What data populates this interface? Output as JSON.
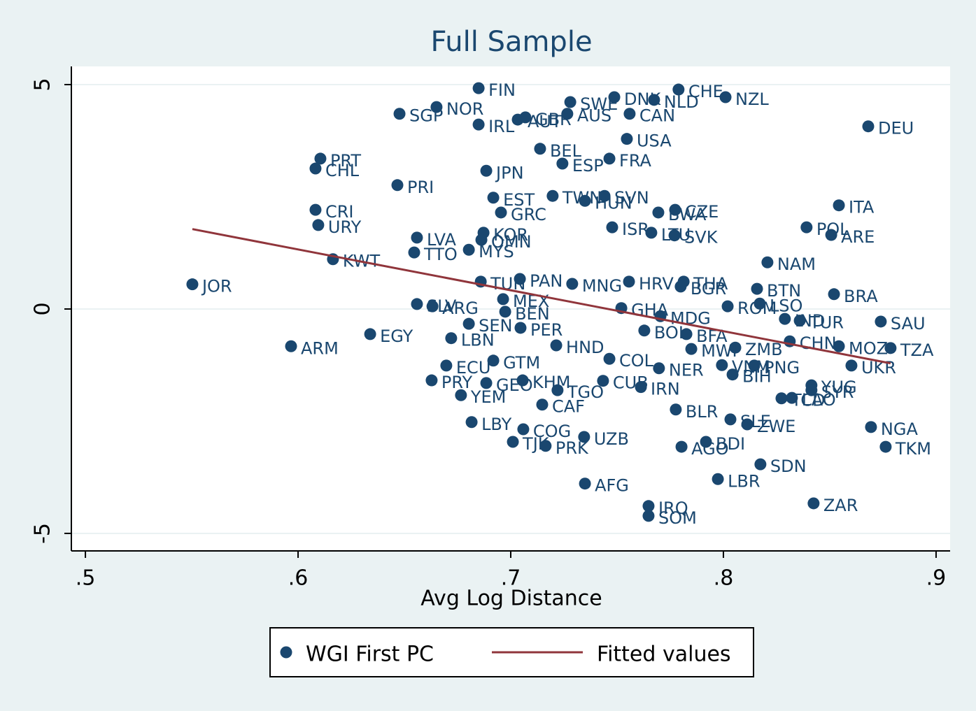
{
  "chart_data": {
    "type": "scatter",
    "title": "Full Sample",
    "x_label": "Avg Log Distance",
    "xlim": [
      0.4934,
      0.9066
    ],
    "ylim": [
      -5.39,
      5.405
    ],
    "xticks": [
      {
        "value": 0.5,
        "label": ".5"
      },
      {
        "value": 0.6,
        "label": ".6"
      },
      {
        "value": 0.7,
        "label": ".7"
      },
      {
        "value": 0.8,
        "label": ".8"
      },
      {
        "value": 0.9,
        "label": ".9"
      }
    ],
    "yticks": [
      -5,
      0,
      5
    ],
    "grid": true,
    "series": [
      {
        "name": "WGI First PC",
        "style": "marker",
        "color": "#1a476f",
        "point_labels": [
          "FIN",
          "NOR",
          "SGP",
          "IRL",
          "AUT",
          "GBR",
          "AUS",
          "SWE",
          "DNK",
          "NLD",
          "CHE",
          "NZL",
          "CAN",
          "USA",
          "DEU",
          "BEL",
          "ESP",
          "FRA",
          "PRT",
          "CHL",
          "JPN",
          "PRI",
          "EST",
          "TWN",
          "SVN",
          "HUN",
          "CRI",
          "GRC",
          "BWA",
          "CZE",
          "URY",
          "ISR",
          "LTU",
          "SVK",
          "KOR",
          "OMN",
          "LVA",
          "MYS",
          "TTO",
          "KWT",
          "POL",
          "ITA",
          "ARE",
          "NAM",
          "JOR",
          "PAN",
          "TUN",
          "MNG",
          "HRV",
          "THA",
          "BGR",
          "BTN",
          "BRA",
          "ROM",
          "LSO",
          "IND",
          "TUR",
          "SAU",
          "CHN",
          "MOZ",
          "TZA",
          "UKR",
          "ZMB",
          "SLV",
          "ARG",
          "MEX",
          "BEN",
          "SEN",
          "PER",
          "EGY",
          "ARM",
          "LBN",
          "HND",
          "GHA",
          "MDG",
          "BOL",
          "BFA",
          "COL",
          "GTM",
          "ECU",
          "PRY",
          "GEO",
          "KHM",
          "YEM",
          "TGO",
          "CAF",
          "CUB",
          "IRN",
          "NER",
          "BLR",
          "LBR",
          "SDN",
          "ZAR",
          "SOM",
          "IRQ",
          "AFG",
          "AGO",
          "BDI",
          "ZWE",
          "SLE",
          "NGA",
          "TKM",
          "YUG",
          "SYR",
          "LAO",
          "TCD",
          "PNG",
          "BIH",
          "LBY",
          "COG",
          "TJK",
          "PRK",
          "UZB",
          "MWI",
          "VNM"
        ],
        "x": [
          0.6849,
          0.6651,
          0.6477,
          0.6849,
          0.7033,
          0.7069,
          0.7266,
          0.728,
          0.7487,
          0.7674,
          0.7789,
          0.801,
          0.7559,
          0.7546,
          0.8681,
          0.7138,
          0.7243,
          0.7464,
          0.6105,
          0.6082,
          0.6885,
          0.6467,
          0.6918,
          0.7197,
          0.7441,
          0.7349,
          0.6082,
          0.6954,
          0.7694,
          0.7773,
          0.6095,
          0.7477,
          0.7661,
          0.777,
          0.6872,
          0.6862,
          0.6559,
          0.6803,
          0.6546,
          0.6164,
          0.8391,
          0.8543,
          0.8507,
          0.8207,
          0.5503,
          0.7043,
          0.6859,
          0.7289,
          0.7556,
          0.7813,
          0.7799,
          0.8158,
          0.852,
          0.802,
          0.8171,
          0.8289,
          0.8359,
          0.874,
          0.8312,
          0.8543,
          0.8786,
          0.8602,
          0.8056,
          0.6559,
          0.6632,
          0.6964,
          0.6974,
          0.6803,
          0.7046,
          0.6339,
          0.5967,
          0.672,
          0.7214,
          0.752,
          0.7704,
          0.7628,
          0.7826,
          0.7464,
          0.6918,
          0.6697,
          0.6628,
          0.6885,
          0.7056,
          0.6766,
          0.722,
          0.7148,
          0.7434,
          0.7612,
          0.7697,
          0.7776,
          0.7974,
          0.8174,
          0.8424,
          0.7648,
          0.7648,
          0.7349,
          0.7803,
          0.7918,
          0.8112,
          0.8033,
          0.8694,
          0.8763,
          0.8414,
          0.8414,
          0.8322,
          0.8273,
          0.8145,
          0.8043,
          0.6816,
          0.7059,
          0.701,
          0.7164,
          0.7345,
          0.7849,
          0.7993
        ],
        "values": [
          4.92,
          4.5,
          4.35,
          4.11,
          4.22,
          4.27,
          4.35,
          4.61,
          4.72,
          4.66,
          4.89,
          4.72,
          4.35,
          3.79,
          4.07,
          3.57,
          3.24,
          3.35,
          3.35,
          3.13,
          3.08,
          2.76,
          2.48,
          2.52,
          2.52,
          2.41,
          2.21,
          2.15,
          2.15,
          2.21,
          1.87,
          1.82,
          1.7,
          1.64,
          1.7,
          1.54,
          1.59,
          1.32,
          1.26,
          1.11,
          1.82,
          2.31,
          1.65,
          1.04,
          0.55,
          0.67,
          0.61,
          0.56,
          0.61,
          0.61,
          0.5,
          0.45,
          0.33,
          0.06,
          0.12,
          -0.22,
          -0.26,
          -0.28,
          -0.72,
          -0.83,
          -0.87,
          -1.26,
          -0.86,
          0.11,
          0.06,
          0.22,
          -0.06,
          -0.33,
          -0.42,
          -0.56,
          -0.83,
          -0.65,
          -0.81,
          0.02,
          -0.16,
          -0.48,
          -0.56,
          -1.11,
          -1.15,
          -1.26,
          -1.59,
          -1.65,
          -1.59,
          -1.92,
          -1.81,
          -2.13,
          -1.6,
          -1.74,
          -1.32,
          -2.24,
          -3.79,
          -3.46,
          -4.33,
          -4.61,
          -4.39,
          -3.89,
          -3.07,
          -2.96,
          -2.57,
          -2.46,
          -2.63,
          -3.07,
          -1.7,
          -1.81,
          -1.98,
          -1.99,
          -1.26,
          -1.46,
          -2.52,
          -2.68,
          -2.96,
          -3.05,
          -2.85,
          -0.89,
          -1.25
        ]
      },
      {
        "name": "Fitted values",
        "style": "line",
        "color": "#90353b",
        "x": [
          0.5503,
          0.8786
        ],
        "values": [
          1.78,
          -1.21
        ]
      }
    ]
  }
}
